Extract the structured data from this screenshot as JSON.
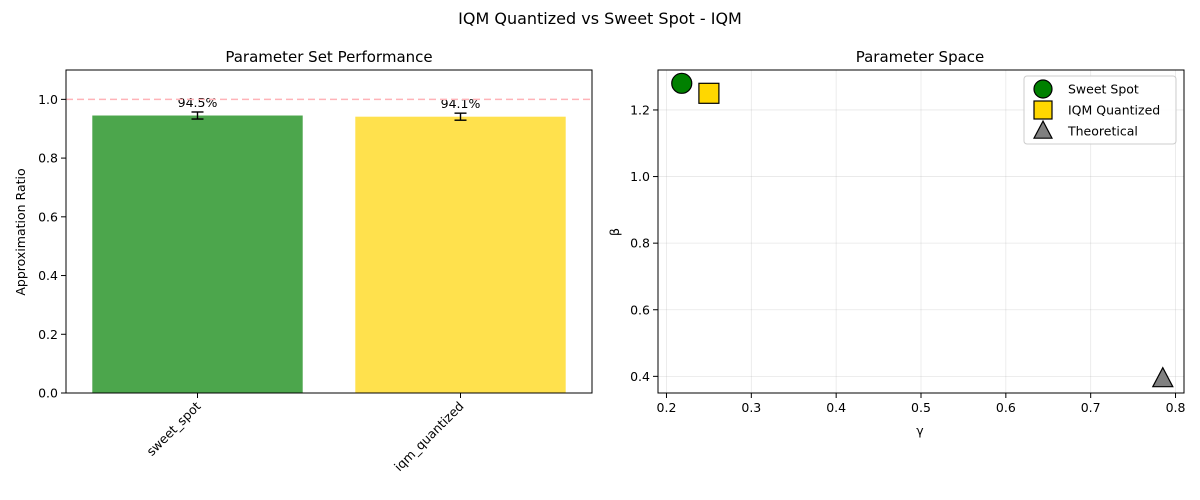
{
  "figure": {
    "suptitle": "IQM Quantized vs Sweet Spot - IQM"
  },
  "chart_data": [
    {
      "type": "bar",
      "title": "Parameter Set Performance",
      "xlabel": "",
      "ylabel": "Approximation Ratio",
      "ylim": [
        0,
        1.1
      ],
      "yticks": [
        "0.0",
        "0.2",
        "0.4",
        "0.6",
        "0.8",
        "1.0"
      ],
      "categories": [
        "sweet_spot",
        "iqm_quantized"
      ],
      "values": [
        0.945,
        0.941
      ],
      "errors": [
        0.012,
        0.012
      ],
      "value_labels": [
        "94.5%",
        "94.1%"
      ],
      "colors": [
        "#4ca64c",
        "#ffe14d"
      ],
      "reference_line": {
        "y": 1.0,
        "color": "#ffb3b8",
        "style": "dashed"
      },
      "grid": false
    },
    {
      "type": "scatter",
      "title": "Parameter Space",
      "xlabel": "γ",
      "ylabel": "β",
      "xlim": [
        0.19,
        0.81
      ],
      "ylim": [
        0.35,
        1.32
      ],
      "xticks": [
        "0.2",
        "0.3",
        "0.4",
        "0.5",
        "0.6",
        "0.7",
        "0.8"
      ],
      "yticks": [
        "0.4",
        "0.6",
        "0.8",
        "1.0",
        "1.2"
      ],
      "grid": true,
      "legend_position": "top-right",
      "series": [
        {
          "name": "Sweet Spot",
          "marker": "circle",
          "color": "#008000",
          "x": [
            0.218
          ],
          "y": [
            1.28
          ]
        },
        {
          "name": "IQM Quantized",
          "marker": "square",
          "color": "#ffd700",
          "x": [
            0.25
          ],
          "y": [
            1.25
          ]
        },
        {
          "name": "Theoretical",
          "marker": "triangle",
          "color": "#808080",
          "x": [
            0.785
          ],
          "y": [
            0.393
          ]
        }
      ]
    }
  ]
}
